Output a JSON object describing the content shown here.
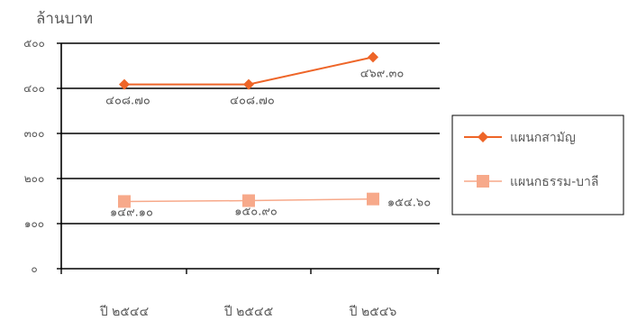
{
  "chart_data": {
    "type": "line",
    "title": "",
    "ylabel": "ล้านบาท",
    "xlabel": "",
    "ylim": [
      0,
      500
    ],
    "yticks": [
      0,
      100,
      200,
      300,
      400,
      500
    ],
    "ytick_labels": [
      "๐",
      "๑๐๐",
      "๒๐๐",
      "๓๐๐",
      "๔๐๐",
      "๕๐๐"
    ],
    "categories": [
      "ปี ๒๕๔๔",
      "ปี ๒๕๔๕",
      "ปี ๒๕๔๖"
    ],
    "grid": true,
    "legend_position": "right",
    "series": [
      {
        "name": "แผนกสามัญ",
        "values": [
          408.7,
          408.7,
          469.3
        ],
        "labels": [
          "๔๐๘.๗๐",
          "๔๐๘.๗๐",
          "๔๖๙.๓๐"
        ],
        "color": "#ee6528",
        "marker": "diamond"
      },
      {
        "name": "แผนกธรรม-บาลี",
        "values": [
          149.1,
          150.9,
          154.6
        ],
        "labels": [
          "๑๔๙.๑๐",
          "๑๕๐.๙๐",
          "๑๕๔.๖๐"
        ],
        "color": "#f7a98a",
        "marker": "square"
      }
    ]
  }
}
